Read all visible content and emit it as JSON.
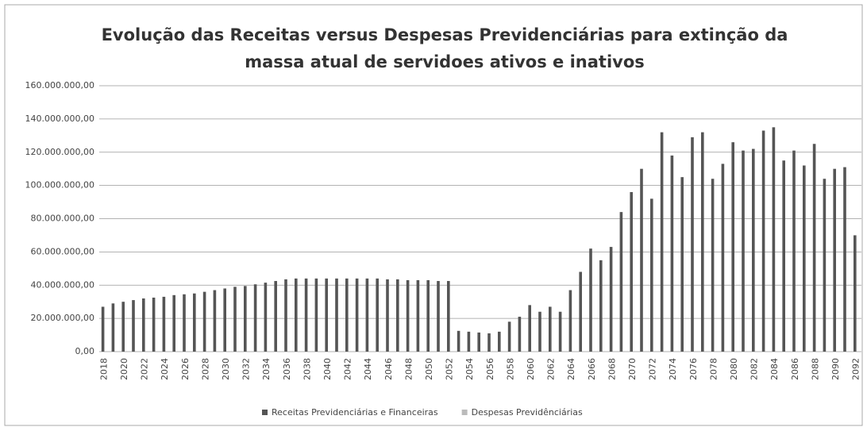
{
  "chart_data": {
    "type": "bar",
    "title": "Evolução das Receitas versus Despesas Previdenciárias para extinção da massa  atual de servidoes ativos e inativos",
    "categories": [
      "2018",
      null,
      "2020",
      null,
      "2022",
      null,
      "2024",
      null,
      "2026",
      null,
      "2028",
      null,
      "2030",
      null,
      "2032",
      null,
      "2034",
      null,
      "2036",
      null,
      "2038",
      null,
      "2040",
      null,
      "2042",
      null,
      "2044",
      null,
      "2046",
      null,
      "2048",
      null,
      "2050",
      null,
      "2052",
      null,
      "2054",
      null,
      "2056",
      null,
      "2058",
      null,
      "2060",
      null,
      "2062",
      null,
      "2064",
      null,
      "2066",
      null,
      "2068",
      null,
      "2070",
      null,
      "2072",
      null,
      "2074",
      null,
      "2076",
      null,
      "2078",
      null,
      "2080",
      null,
      "2082",
      null,
      "2084",
      null,
      "2086",
      null,
      "2088",
      null,
      "2090",
      null,
      "2092"
    ],
    "series": [
      {
        "name": "Receitas Previdenciárias e Financeiras",
        "color": "#555555",
        "values": [
          27000000,
          29000000,
          30000000,
          31000000,
          32000000,
          32500000,
          33000000,
          34000000,
          34500000,
          35000000,
          36000000,
          37000000,
          38000000,
          39000000,
          39500000,
          40500000,
          41500000,
          42500000,
          43500000,
          44000000,
          44000000,
          44000000,
          44000000,
          44000000,
          44000000,
          44000000,
          44000000,
          44000000,
          43500000,
          43500000,
          43000000,
          43000000,
          43000000,
          42500000,
          42500000,
          12500000,
          12000000,
          11500000,
          11000000,
          12000000,
          18000000,
          21000000,
          28000000,
          24000000,
          27000000,
          24000000,
          37000000,
          48000000,
          62000000,
          55000000,
          63000000,
          84000000,
          96000000,
          110000000,
          92000000,
          132000000,
          118000000,
          105000000,
          129000000,
          132000000,
          104000000,
          113000000,
          126000000,
          121000000,
          122000000,
          133000000,
          135000000,
          115000000,
          121000000,
          112000000,
          125000000,
          104000000,
          110000000,
          111000000,
          70000000
        ]
      },
      {
        "name": "Despesas Previdênciárias",
        "color": "#bbbbbb",
        "values": [
          null,
          null,
          null,
          null,
          null,
          null,
          null,
          null,
          null,
          null,
          null,
          null,
          null,
          null,
          null,
          null,
          null,
          null,
          null,
          null,
          null,
          null,
          null,
          null,
          null,
          null,
          null,
          null,
          null,
          null,
          null,
          null,
          null,
          null,
          null,
          null,
          null,
          null,
          null,
          null,
          null,
          null,
          null,
          null,
          null,
          null,
          null,
          null,
          null,
          null,
          null,
          null,
          null,
          null,
          null,
          null,
          null,
          null,
          null,
          null,
          null,
          null,
          null,
          null,
          null,
          null,
          null,
          null,
          null,
          null,
          null,
          null,
          null,
          null,
          null
        ]
      }
    ],
    "ylim": [
      0,
      160000000
    ],
    "yticks": [
      {
        "value": 0,
        "label": "0,00"
      },
      {
        "value": 20000000,
        "label": "20.000.000,00"
      },
      {
        "value": 40000000,
        "label": "40.000.000,00"
      },
      {
        "value": 60000000,
        "label": "60.000.000,00"
      },
      {
        "value": 80000000,
        "label": "80.000.000,00"
      },
      {
        "value": 100000000,
        "label": "100.000.000,00"
      },
      {
        "value": 120000000,
        "label": "120.000.000,00"
      },
      {
        "value": 140000000,
        "label": "140.000.000,00"
      },
      {
        "value": 160000000,
        "label": "160.000.000,00"
      }
    ],
    "grid": true
  }
}
